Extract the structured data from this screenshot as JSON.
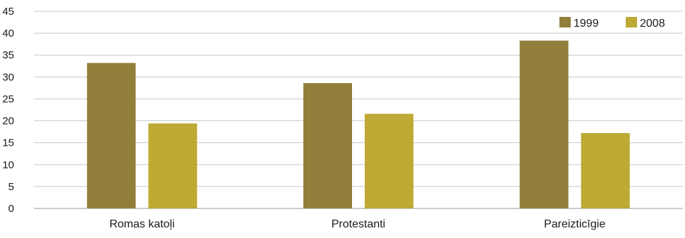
{
  "chart_data": {
    "type": "bar",
    "categories": [
      "Romas katoļi",
      "Protestanti",
      "Pareizticīgie"
    ],
    "series": [
      {
        "name": "1999",
        "values": [
          33.2,
          28.6,
          38.3
        ],
        "color": "#927e3b"
      },
      {
        "name": "2008",
        "values": [
          19.4,
          21.6,
          17.2
        ],
        "color": "#bda934"
      }
    ],
    "ylim": [
      0,
      45
    ],
    "yticks": [
      0,
      5,
      10,
      15,
      20,
      25,
      30,
      35,
      40,
      45
    ],
    "title": "",
    "xlabel": "",
    "ylabel": "",
    "grid": true,
    "legend_position": "top-right"
  }
}
